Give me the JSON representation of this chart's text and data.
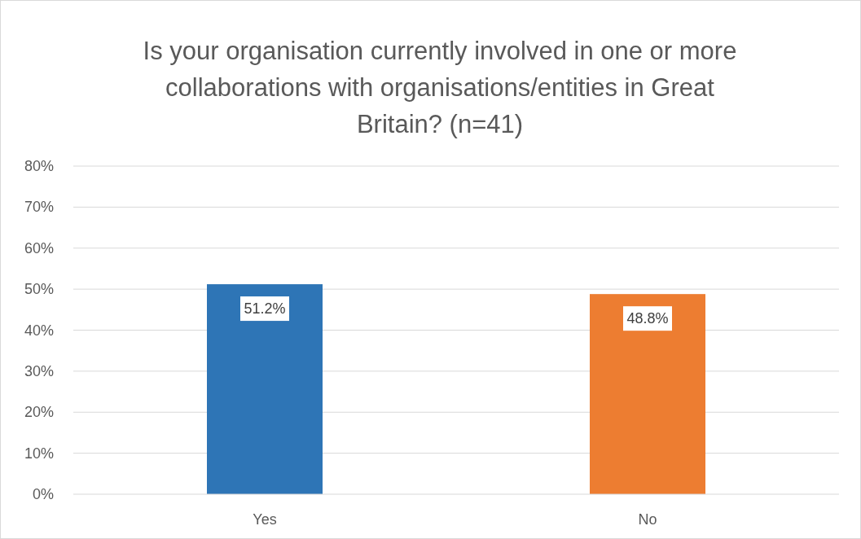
{
  "chart_data": {
    "type": "bar",
    "title": "Is your organisation currently involved in one or more collaborations with organisations/entities in Great Britain? (n=41)",
    "categories": [
      "Yes",
      "No"
    ],
    "values": [
      51.2,
      48.8
    ],
    "colors": [
      "#2e75b6",
      "#ed7d31"
    ],
    "value_labels": [
      "51.2%",
      "48.8%"
    ],
    "ylim": [
      0,
      80
    ],
    "yticks": [
      {
        "value": 0,
        "label": "0%"
      },
      {
        "value": 10,
        "label": "10%"
      },
      {
        "value": 20,
        "label": "20%"
      },
      {
        "value": 30,
        "label": "30%"
      },
      {
        "value": 40,
        "label": "40%"
      },
      {
        "value": 50,
        "label": "50%"
      },
      {
        "value": 60,
        "label": "60%"
      },
      {
        "value": 70,
        "label": "70%"
      },
      {
        "value": 80,
        "label": "80%"
      }
    ],
    "grid": "y"
  }
}
